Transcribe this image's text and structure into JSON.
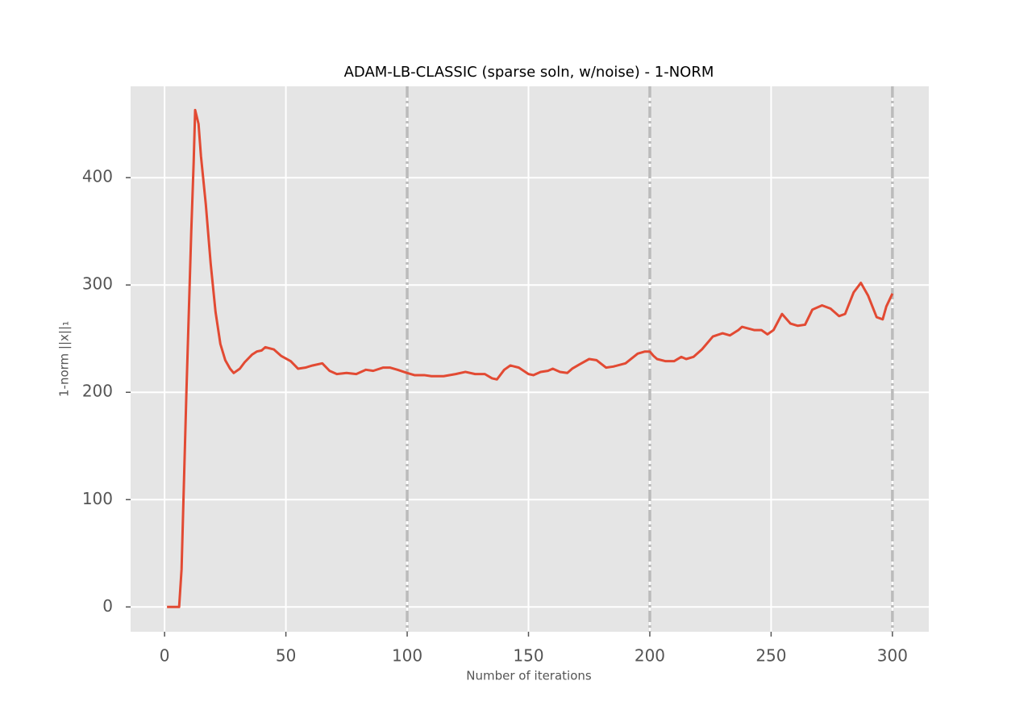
{
  "chart_data": {
    "type": "line",
    "title": "ADAM-LB-CLASSIC (sparse soln, w/noise) - 1-NORM",
    "xlabel": "Number of iterations",
    "ylabel": "1-norm ||x||₁",
    "xlim": [
      -14,
      315
    ],
    "ylim": [
      -23.1,
      485.1
    ],
    "xticks": [
      0,
      50,
      100,
      150,
      200,
      250,
      300
    ],
    "yticks": [
      0,
      100,
      200,
      300,
      400
    ],
    "grid": true,
    "vlines": [
      100,
      200,
      300
    ],
    "vline_color": "#bbbbbb",
    "series": [
      {
        "color": "#E24A33",
        "x": [
          1,
          6,
          7,
          9,
          11,
          12,
          12.6,
          14,
          15,
          17,
          19,
          21,
          23,
          25,
          27,
          28.5,
          31,
          33,
          36,
          38,
          40,
          41.5,
          45,
          48,
          52,
          55,
          58,
          61,
          65,
          68,
          71,
          75,
          79,
          83,
          86,
          90,
          93,
          96,
          100,
          103,
          107,
          110,
          115,
          120,
          124,
          128,
          132,
          135,
          137,
          140,
          142.5,
          146,
          150,
          152,
          155,
          158,
          160,
          163,
          166,
          168,
          171,
          175,
          178,
          182,
          185,
          190,
          195,
          198,
          200,
          201.5,
          203,
          206.5,
          210,
          213,
          215,
          218,
          221.5,
          226,
          230,
          233,
          236.5,
          238,
          243,
          246,
          248.5,
          251,
          254.5,
          258,
          261,
          264,
          267,
          271,
          274.5,
          278,
          280.5,
          284,
          287,
          290,
          293.5,
          296,
          297.5,
          300
        ],
        "values": [
          0,
          0,
          35,
          200,
          350,
          415,
          463,
          450,
          420,
          375,
          320,
          275,
          245,
          230,
          222,
          218,
          222,
          228,
          235,
          238,
          239,
          242,
          240,
          234,
          229,
          222,
          223,
          225,
          227,
          220,
          217,
          218,
          217,
          221,
          220,
          223,
          223,
          221,
          218,
          216,
          216,
          215,
          215,
          217,
          219,
          217,
          217,
          213,
          212,
          221,
          225,
          223,
          217,
          216,
          219,
          220,
          222,
          219,
          218,
          222,
          226,
          231,
          230,
          223,
          224,
          227,
          236,
          238,
          238,
          234,
          231,
          229,
          229,
          233,
          231,
          233,
          240,
          252,
          255,
          253,
          258,
          261,
          258,
          258,
          254,
          258,
          273,
          264,
          262,
          263,
          277,
          281,
          278,
          271,
          273,
          293,
          302,
          290,
          270,
          268,
          280,
          292
        ]
      }
    ]
  }
}
